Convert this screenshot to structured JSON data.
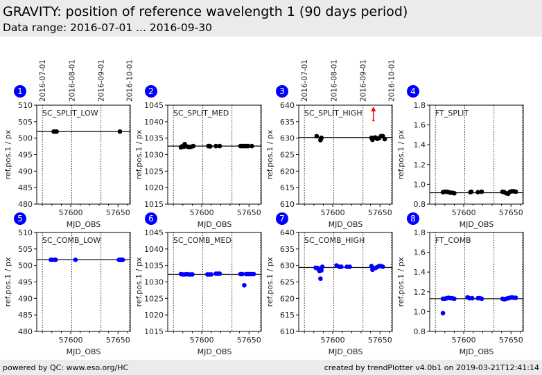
{
  "header": {
    "title": "GRAVITY: position of reference wavelength 1 (90 days period)",
    "subtitle": "Data range: 2016-07-01 ... 2016-09-30"
  },
  "footer": {
    "left": "powered by QC: www.eso.org/HC",
    "right": "created by trendPlotter v4.0b1 on 2019-03-21T12:41:14"
  },
  "chart_data": {
    "type": "scatter",
    "xlabel": "MJD_OBS",
    "ylabel": "ref.pos.1 / px",
    "xlim": [
      57564,
      57663
    ],
    "xticks": [
      57600,
      57650
    ],
    "date_ticks": [
      {
        "label": "2016-07-01",
        "mjd": 57570
      },
      {
        "label": "2016-08-01",
        "mjd": 57601
      },
      {
        "label": "2016-09-01",
        "mjd": 57632
      },
      {
        "label": "2016-10-01",
        "mjd": 57662
      }
    ],
    "badge_color": "#0000ff",
    "panels": [
      {
        "id": "1",
        "title": "SC_SPLIT_LOW",
        "color": "#000000",
        "ylim": [
          480,
          510
        ],
        "yticks": [
          480,
          485,
          490,
          495,
          500,
          505,
          510
        ],
        "ref": 502.0,
        "date_axis": true,
        "points": [
          [
            57582,
            502
          ],
          [
            57583,
            502
          ],
          [
            57584,
            502
          ],
          [
            57585,
            502
          ],
          [
            57652,
            502
          ]
        ]
      },
      {
        "id": "2",
        "title": "SC_SPLIT_MED",
        "color": "#000000",
        "ylim": [
          1015,
          1045
        ],
        "yticks": [
          1015,
          1020,
          1025,
          1030,
          1035,
          1040,
          1045
        ],
        "ref": 1032.6,
        "date_axis": false,
        "points": [
          [
            57578,
            1032.2
          ],
          [
            57579,
            1032.5
          ],
          [
            57581,
            1032.4
          ],
          [
            57582,
            1033.2
          ],
          [
            57583,
            1032.6
          ],
          [
            57585,
            1032.4
          ],
          [
            57587,
            1032.3
          ],
          [
            57589,
            1032.4
          ],
          [
            57591,
            1032.6
          ],
          [
            57607,
            1032.6
          ],
          [
            57608,
            1032.6
          ],
          [
            57609,
            1032.5
          ],
          [
            57615,
            1032.6
          ],
          [
            57619,
            1032.6
          ],
          [
            57641,
            1032.6
          ],
          [
            57643,
            1032.6
          ],
          [
            57645,
            1032.6
          ],
          [
            57647,
            1032.6
          ],
          [
            57649,
            1032.6
          ],
          [
            57653,
            1032.6
          ]
        ]
      },
      {
        "id": "3",
        "title": "SC_SPLIT_HIGH",
        "color": "#000000",
        "ylim": [
          610,
          640
        ],
        "yticks": [
          610,
          615,
          620,
          625,
          630,
          635,
          640
        ],
        "ref": 630.2,
        "date_axis": true,
        "points": [
          [
            57583,
            630.6
          ],
          [
            57587,
            629.4
          ],
          [
            57587.5,
            629.8
          ],
          [
            57588,
            630.1
          ],
          [
            57641,
            630.1
          ],
          [
            57642,
            629.5
          ],
          [
            57643,
            630.0
          ],
          [
            57645,
            630.2
          ],
          [
            57647,
            629.8
          ],
          [
            57649,
            630.0
          ],
          [
            57651,
            630.6
          ],
          [
            57653,
            630.6
          ],
          [
            57655,
            629.7
          ]
        ],
        "outliers_above": [
          57643
        ]
      },
      {
        "id": "4",
        "title": "FT_SPLIT",
        "color": "#000000",
        "ylim": [
          0.8,
          1.8
        ],
        "yticks": [
          0.8,
          1.0,
          1.2,
          1.4,
          1.6,
          1.8
        ],
        "ref": 0.915,
        "date_axis": false,
        "points": [
          [
            57578,
            0.92
          ],
          [
            57580,
            0.925
          ],
          [
            57582,
            0.925
          ],
          [
            57584,
            0.92
          ],
          [
            57586,
            0.915
          ],
          [
            57588,
            0.915
          ],
          [
            57590,
            0.91
          ],
          [
            57607,
            0.92
          ],
          [
            57608,
            0.925
          ],
          [
            57615,
            0.92
          ],
          [
            57619,
            0.925
          ],
          [
            57641,
            0.925
          ],
          [
            57643,
            0.92
          ],
          [
            57645,
            0.91
          ],
          [
            57647,
            0.905
          ],
          [
            57649,
            0.925
          ],
          [
            57651,
            0.93
          ],
          [
            57653,
            0.93
          ],
          [
            57655,
            0.925
          ]
        ]
      },
      {
        "id": "5",
        "title": "SC_COMB_LOW",
        "color": "#0000ff",
        "ylim": [
          480,
          510
        ],
        "yticks": [
          480,
          485,
          490,
          495,
          500,
          505,
          510
        ],
        "ref": 501.7,
        "date_axis": false,
        "points": [
          [
            57579,
            501.7
          ],
          [
            57580,
            501.7
          ],
          [
            57583,
            501.7
          ],
          [
            57584,
            501.7
          ],
          [
            57605,
            501.7
          ],
          [
            57651,
            501.7
          ],
          [
            57652,
            501.7
          ],
          [
            57653,
            501.7
          ],
          [
            57654,
            501.7
          ],
          [
            57655,
            501.7
          ]
        ]
      },
      {
        "id": "6",
        "title": "SC_COMB_MED",
        "color": "#0000ff",
        "ylim": [
          1015,
          1045
        ],
        "yticks": [
          1015,
          1020,
          1025,
          1030,
          1035,
          1040,
          1045
        ],
        "ref": 1032.3,
        "date_axis": false,
        "points": [
          [
            57578,
            1032.4
          ],
          [
            57580,
            1032.3
          ],
          [
            57582,
            1032.3
          ],
          [
            57584,
            1032.4
          ],
          [
            57586,
            1032.3
          ],
          [
            57588,
            1032.3
          ],
          [
            57590,
            1032.3
          ],
          [
            57606,
            1032.3
          ],
          [
            57608,
            1032.3
          ],
          [
            57610,
            1032.3
          ],
          [
            57615,
            1032.5
          ],
          [
            57617,
            1032.5
          ],
          [
            57619,
            1032.5
          ],
          [
            57641,
            1032.4
          ],
          [
            57643,
            1032.4
          ],
          [
            57645,
            1029.0
          ],
          [
            57647,
            1032.4
          ],
          [
            57649,
            1032.4
          ],
          [
            57651,
            1032.4
          ],
          [
            57653,
            1032.4
          ],
          [
            57655,
            1032.4
          ]
        ]
      },
      {
        "id": "7",
        "title": "SC_COMB_HIGH",
        "color": "#0000ff",
        "ylim": [
          610,
          640
        ],
        "yticks": [
          610,
          615,
          620,
          625,
          630,
          635,
          640
        ],
        "ref": 629.4,
        "date_axis": false,
        "points": [
          [
            57582,
            629.3
          ],
          [
            57584,
            629.2
          ],
          [
            57585,
            628.8
          ],
          [
            57586,
            628.3
          ],
          [
            57587,
            626.0
          ],
          [
            57588,
            628.5
          ],
          [
            57589,
            629.6
          ],
          [
            57604,
            630.0
          ],
          [
            57607,
            629.6
          ],
          [
            57609,
            629.6
          ],
          [
            57615,
            629.6
          ],
          [
            57618,
            629.6
          ],
          [
            57641,
            629.8
          ],
          [
            57642,
            628.7
          ],
          [
            57645,
            629.2
          ],
          [
            57647,
            629.5
          ],
          [
            57649,
            629.8
          ],
          [
            57651,
            629.8
          ],
          [
            57653,
            629.6
          ]
        ]
      },
      {
        "id": "8",
        "title": "FT_COMB",
        "color": "#0000ff",
        "ylim": [
          0.8,
          1.8
        ],
        "yticks": [
          0.8,
          1.0,
          1.2,
          1.4,
          1.6,
          1.8
        ],
        "ref": 1.13,
        "date_axis": false,
        "points": [
          [
            57578,
            0.985
          ],
          [
            57578,
            1.13
          ],
          [
            57580,
            1.13
          ],
          [
            57582,
            1.135
          ],
          [
            57584,
            1.14
          ],
          [
            57586,
            1.135
          ],
          [
            57588,
            1.135
          ],
          [
            57590,
            1.13
          ],
          [
            57604,
            1.145
          ],
          [
            57606,
            1.135
          ],
          [
            57609,
            1.135
          ],
          [
            57615,
            1.135
          ],
          [
            57617,
            1.135
          ],
          [
            57619,
            1.13
          ],
          [
            57641,
            1.13
          ],
          [
            57643,
            1.125
          ],
          [
            57645,
            1.13
          ],
          [
            57647,
            1.135
          ],
          [
            57649,
            1.14
          ],
          [
            57651,
            1.145
          ],
          [
            57653,
            1.14
          ],
          [
            57655,
            1.14
          ]
        ]
      }
    ]
  }
}
